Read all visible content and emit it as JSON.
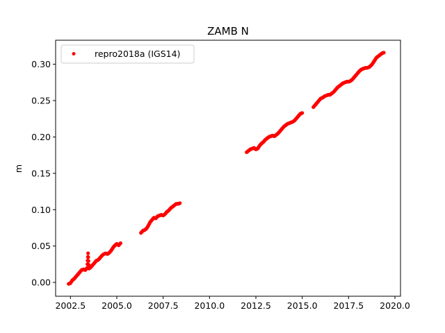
{
  "chart_data": {
    "type": "scatter",
    "title": "ZAMB N",
    "xlabel": "",
    "ylabel": "m",
    "xlim": [
      2001.7,
      2020.3
    ],
    "ylim": [
      -0.019,
      0.333
    ],
    "x_ticks": [
      2002.5,
      2005.0,
      2007.5,
      2010.0,
      2012.5,
      2015.0,
      2017.5,
      2020.0
    ],
    "x_tick_labels": [
      "2002.5",
      "2005.0",
      "2007.5",
      "2010.0",
      "2012.5",
      "2015.0",
      "2017.5",
      "2020.0"
    ],
    "y_ticks": [
      0.0,
      0.05,
      0.1,
      0.15,
      0.2,
      0.25,
      0.3
    ],
    "y_tick_labels": [
      "0.00",
      "0.05",
      "0.10",
      "0.15",
      "0.20",
      "0.25",
      "0.30"
    ],
    "grid": false,
    "legend": {
      "position": "top-left",
      "entries": [
        "repro2018a (IGS14)"
      ]
    },
    "series": [
      {
        "name": "repro2018a (IGS14)",
        "color": "#ff0000",
        "marker": "circle",
        "points": [
          [
            2002.4,
            -0.002
          ],
          [
            2002.5,
            -0.001
          ],
          [
            2002.6,
            0.003
          ],
          [
            2002.7,
            0.005
          ],
          [
            2002.8,
            0.008
          ],
          [
            2002.9,
            0.011
          ],
          [
            2003.0,
            0.014
          ],
          [
            2003.1,
            0.017
          ],
          [
            2003.2,
            0.018
          ],
          [
            2003.3,
            0.017
          ],
          [
            2003.4,
            0.02
          ],
          [
            2003.45,
            0.04
          ],
          [
            2003.5,
            0.019
          ],
          [
            2003.6,
            0.021
          ],
          [
            2003.7,
            0.024
          ],
          [
            2003.8,
            0.027
          ],
          [
            2003.9,
            0.03
          ],
          [
            2004.0,
            0.031
          ],
          [
            2004.1,
            0.034
          ],
          [
            2004.2,
            0.037
          ],
          [
            2004.3,
            0.039
          ],
          [
            2004.4,
            0.04
          ],
          [
            2004.5,
            0.039
          ],
          [
            2004.6,
            0.041
          ],
          [
            2004.7,
            0.044
          ],
          [
            2004.8,
            0.048
          ],
          [
            2004.9,
            0.051
          ],
          [
            2005.0,
            0.053
          ],
          [
            2005.1,
            0.051
          ],
          [
            2005.2,
            0.054
          ],
          [
            2006.3,
            0.068
          ],
          [
            2006.4,
            0.071
          ],
          [
            2006.5,
            0.072
          ],
          [
            2006.6,
            0.074
          ],
          [
            2006.7,
            0.078
          ],
          [
            2006.8,
            0.083
          ],
          [
            2006.9,
            0.086
          ],
          [
            2007.0,
            0.089
          ],
          [
            2007.1,
            0.088
          ],
          [
            2007.2,
            0.091
          ],
          [
            2007.3,
            0.092
          ],
          [
            2007.4,
            0.093
          ],
          [
            2007.5,
            0.092
          ],
          [
            2007.6,
            0.094
          ],
          [
            2007.7,
            0.097
          ],
          [
            2007.8,
            0.099
          ],
          [
            2007.9,
            0.102
          ],
          [
            2008.0,
            0.104
          ],
          [
            2008.1,
            0.106
          ],
          [
            2008.2,
            0.108
          ],
          [
            2008.3,
            0.108
          ],
          [
            2008.4,
            0.109
          ],
          [
            2012.0,
            0.179
          ],
          [
            2012.1,
            0.181
          ],
          [
            2012.2,
            0.183
          ],
          [
            2012.3,
            0.184
          ],
          [
            2012.4,
            0.185
          ],
          [
            2012.5,
            0.183
          ],
          [
            2012.6,
            0.184
          ],
          [
            2012.7,
            0.188
          ],
          [
            2012.8,
            0.191
          ],
          [
            2012.9,
            0.193
          ],
          [
            2013.0,
            0.196
          ],
          [
            2013.1,
            0.198
          ],
          [
            2013.2,
            0.2
          ],
          [
            2013.3,
            0.201
          ],
          [
            2013.4,
            0.202
          ],
          [
            2013.5,
            0.201
          ],
          [
            2013.6,
            0.203
          ],
          [
            2013.7,
            0.205
          ],
          [
            2013.8,
            0.208
          ],
          [
            2013.9,
            0.211
          ],
          [
            2014.0,
            0.214
          ],
          [
            2014.1,
            0.216
          ],
          [
            2014.2,
            0.218
          ],
          [
            2014.3,
            0.219
          ],
          [
            2014.4,
            0.22
          ],
          [
            2014.5,
            0.221
          ],
          [
            2014.6,
            0.223
          ],
          [
            2014.7,
            0.226
          ],
          [
            2014.8,
            0.229
          ],
          [
            2014.9,
            0.232
          ],
          [
            2015.0,
            0.233
          ],
          [
            2015.6,
            0.241
          ],
          [
            2015.7,
            0.244
          ],
          [
            2015.8,
            0.247
          ],
          [
            2015.9,
            0.25
          ],
          [
            2016.0,
            0.253
          ],
          [
            2016.1,
            0.254
          ],
          [
            2016.2,
            0.256
          ],
          [
            2016.3,
            0.257
          ],
          [
            2016.4,
            0.258
          ],
          [
            2016.5,
            0.258
          ],
          [
            2016.6,
            0.26
          ],
          [
            2016.7,
            0.262
          ],
          [
            2016.8,
            0.265
          ],
          [
            2016.9,
            0.268
          ],
          [
            2017.0,
            0.27
          ],
          [
            2017.1,
            0.272
          ],
          [
            2017.2,
            0.274
          ],
          [
            2017.3,
            0.275
          ],
          [
            2017.4,
            0.276
          ],
          [
            2017.5,
            0.276
          ],
          [
            2017.6,
            0.277
          ],
          [
            2017.7,
            0.279
          ],
          [
            2017.8,
            0.282
          ],
          [
            2017.9,
            0.285
          ],
          [
            2018.0,
            0.288
          ],
          [
            2018.1,
            0.291
          ],
          [
            2018.2,
            0.293
          ],
          [
            2018.3,
            0.294
          ],
          [
            2018.4,
            0.295
          ],
          [
            2018.5,
            0.295
          ],
          [
            2018.6,
            0.296
          ],
          [
            2018.7,
            0.298
          ],
          [
            2018.8,
            0.301
          ],
          [
            2018.9,
            0.305
          ],
          [
            2019.0,
            0.309
          ],
          [
            2019.1,
            0.311
          ],
          [
            2019.2,
            0.313
          ],
          [
            2019.3,
            0.315
          ],
          [
            2019.4,
            0.316
          ]
        ]
      }
    ]
  }
}
